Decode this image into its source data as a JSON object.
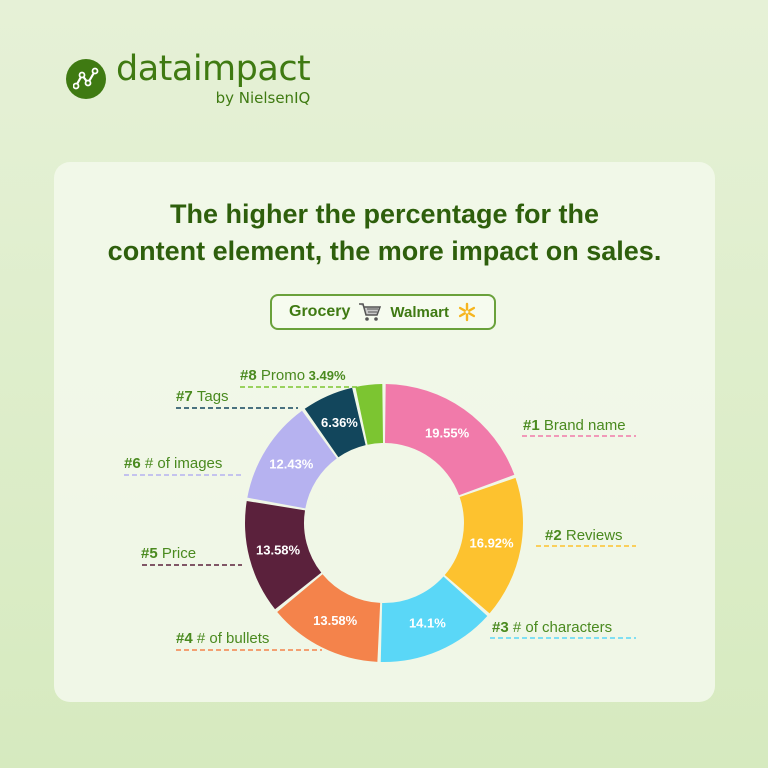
{
  "brand": {
    "name": "dataimpact",
    "sub": "by NielsenIQ"
  },
  "headline": {
    "line1": "The higher the percentage for the",
    "line2": "content element, the more impact on sales."
  },
  "filter": {
    "category": "Grocery",
    "retailer": "Walmart"
  },
  "colors": {
    "brand_green": "#3f7a12",
    "title_green": "#2e5f0c"
  },
  "chart_data": {
    "type": "pie",
    "donut": true,
    "slices": [
      {
        "rank": "#1",
        "label": "Brand name",
        "value": 19.55,
        "display": "19.55%",
        "color": "#f17aaa"
      },
      {
        "rank": "#2",
        "label": "Reviews",
        "value": 16.92,
        "display": "16.92%",
        "color": "#fdc22f"
      },
      {
        "rank": "#3",
        "label": "# of characters",
        "value": 14.1,
        "display": "14.1%",
        "color": "#5ad7f7"
      },
      {
        "rank": "#4",
        "label": "# of bullets",
        "value": 13.58,
        "display": "13.58%",
        "color": "#f4834b"
      },
      {
        "rank": "#5",
        "label": "Price",
        "value": 13.58,
        "display": "13.58%",
        "color": "#5b213c"
      },
      {
        "rank": "#6",
        "label": "# of images",
        "value": 12.43,
        "display": "12.43%",
        "color": "#b6b2f0"
      },
      {
        "rank": "#7",
        "label": "Tags",
        "value": 6.36,
        "display": "6.36%",
        "color": "#12465c"
      },
      {
        "rank": "#8",
        "label": "Promo",
        "value": 3.49,
        "display": "3.49%",
        "color": "#7cc531"
      }
    ]
  }
}
